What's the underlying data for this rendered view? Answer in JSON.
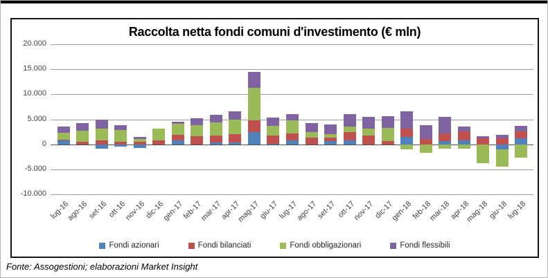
{
  "title": "Raccolta netta fondi comuni d'investimento (€ mln)",
  "footer": "Fonte: Assogestioni; elaborazioni Market Insight",
  "chart_data": {
    "type": "bar",
    "stacked": true,
    "title": "Raccolta netta fondi comuni d'investimento (€ mln)",
    "xlabel": "",
    "ylabel": "",
    "ylim": [
      -10000,
      20000
    ],
    "grid": true,
    "legend_position": "bottom",
    "y_ticks": [
      20000,
      15000,
      10000,
      5000,
      0,
      -5000,
      -10000
    ],
    "y_tick_labels": [
      "20.000",
      "15.000",
      "10.000",
      "5.000",
      "0",
      "-5.000",
      "-10.000"
    ],
    "categories": [
      "lug-16",
      "ago-16",
      "set-16",
      "ott-16",
      "nov-16",
      "dic-16",
      "gen-17",
      "feb-17",
      "mar-17",
      "apr-17",
      "mag-17",
      "giu-17",
      "lug-17",
      "ago-17",
      "set-17",
      "ott-17",
      "nov-17",
      "dic-17",
      "gen-18",
      "feb-18",
      "mar-18",
      "apr-18",
      "mag-18",
      "giu-18",
      "lug-18"
    ],
    "series": [
      {
        "name": "Fondi azionari",
        "color": "#4F81BD",
        "values": [
          800,
          0,
          -800,
          -500,
          -700,
          0,
          800,
          0,
          350,
          400,
          2500,
          150,
          800,
          0,
          600,
          800,
          0,
          0,
          1500,
          0,
          600,
          800,
          0,
          -1000,
          1250
        ]
      },
      {
        "name": "Fondi bilanciati",
        "color": "#C0504D",
        "values": [
          200,
          500,
          800,
          500,
          550,
          800,
          1150,
          1600,
          1400,
          1600,
          2300,
          1600,
          1400,
          1300,
          700,
          1600,
          1700,
          600,
          1700,
          1100,
          1600,
          1800,
          1250,
          1250,
          1350
        ]
      },
      {
        "name": "Fondi obbligazionari",
        "color": "#9BBB59",
        "values": [
          1300,
          2200,
          2300,
          2400,
          550,
          2300,
          2200,
          2300,
          2700,
          2900,
          6500,
          1950,
          2600,
          1200,
          800,
          1200,
          1400,
          2700,
          -1000,
          -1700,
          -800,
          -900,
          -3700,
          -3400,
          -2600
        ]
      },
      {
        "name": "Fondi flessibili",
        "color": "#8064A2",
        "values": [
          1250,
          1500,
          1800,
          900,
          400,
          0,
          400,
          1350,
          1400,
          1700,
          3200,
          1700,
          1200,
          1800,
          1900,
          2500,
          2400,
          2300,
          3400,
          2800,
          3300,
          950,
          350,
          600,
          1050
        ]
      }
    ]
  }
}
